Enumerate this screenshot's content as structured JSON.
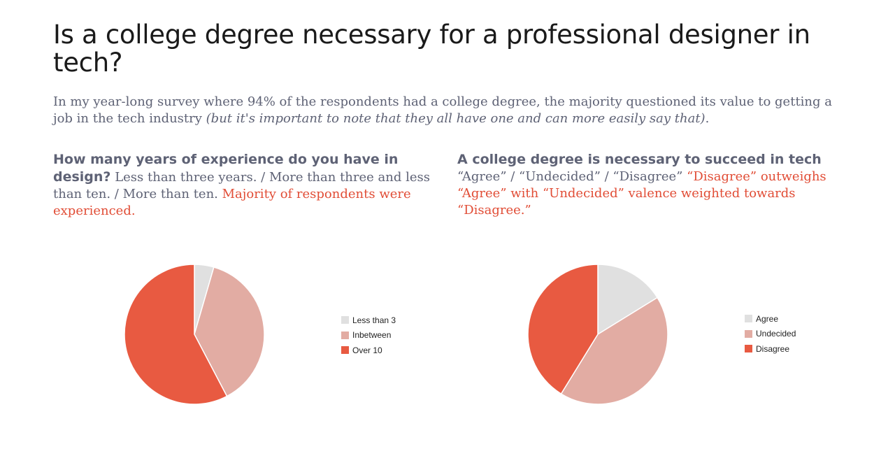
{
  "title": "Is a college degree necessary for a professional designer in tech?",
  "intro": {
    "text": "In my year-long survey where 94% of the respondents had a college degree, the majority questioned its value to getting a job in the tech industry ",
    "italic": "(but it's important to note that they all have one and can more easily say that)",
    "end": "."
  },
  "sections": [
    {
      "question": "How many years of experience do you have in design?",
      "options": " Less than three years. / More than three and less than ten. / More than ten. ",
      "highlight": "Majority of respondents were experienced."
    },
    {
      "question": "A college degree is necessary to succeed in tech",
      "options": " “Agree” / “Undecided” / “Disagree” ",
      "highlight": "“Disagree” outweighs “Agree” with “Undecided” valence weighted towards “Disagree.”"
    }
  ],
  "chart_data": [
    {
      "type": "pie",
      "categories": [
        "Less than 3",
        "Inbetween",
        "Over 10"
      ],
      "values": [
        4.5,
        37.8,
        57.7
      ],
      "colors": [
        "#e0e0e0",
        "#e2aca3",
        "#e85a41"
      ],
      "legend": "right",
      "start_angle": "12 o'clock, clockwise"
    },
    {
      "type": "pie",
      "categories": [
        "Agree",
        "Undecided",
        "Disagree"
      ],
      "values": [
        16.2,
        42.6,
        41.2
      ],
      "colors": [
        "#e0e0e0",
        "#e2aca3",
        "#e85a41"
      ],
      "legend": "right",
      "start_angle": "12 o'clock, clockwise"
    }
  ]
}
